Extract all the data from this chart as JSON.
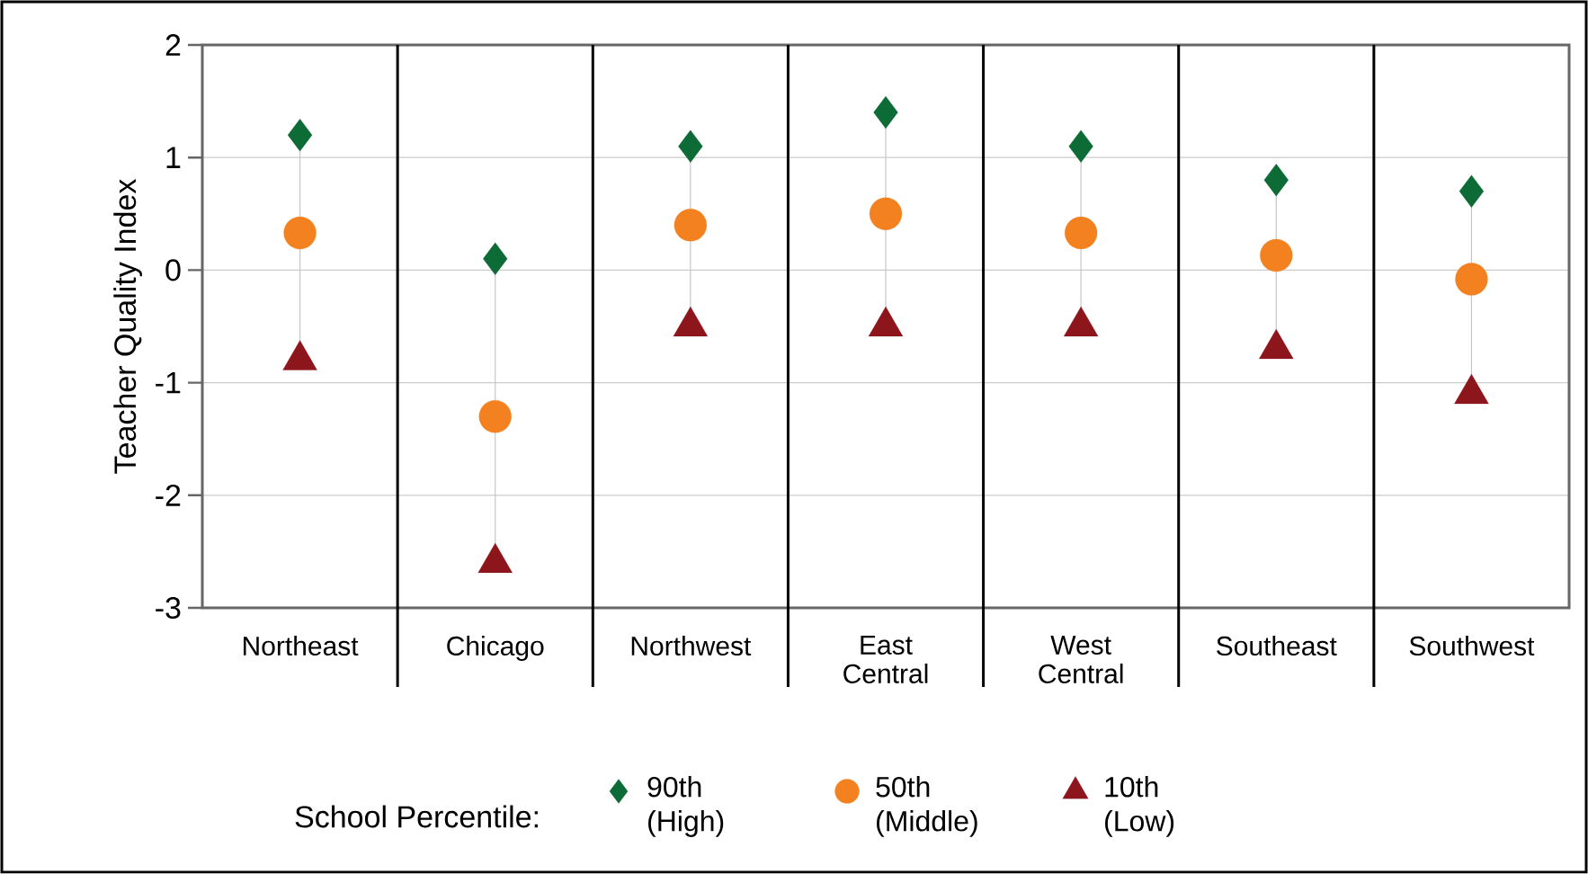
{
  "chart_data": {
    "type": "scatter",
    "ylabel": "Teacher Quality Index",
    "legend_title": "School Percentile:",
    "categories": [
      "Northeast",
      "Chicago",
      "Northwest",
      "East Central",
      "West Central",
      "Southeast",
      "Southwest"
    ],
    "series": [
      {
        "name": "90th (High)",
        "color": "#0d6b35",
        "marker": "diamond",
        "values": [
          1.2,
          0.1,
          1.1,
          1.4,
          1.1,
          0.8,
          0.7
        ]
      },
      {
        "name": "50th (Middle)",
        "color": "#f38120",
        "marker": "circle",
        "values": [
          0.33,
          -1.3,
          0.4,
          0.5,
          0.33,
          0.13,
          -0.08
        ]
      },
      {
        "name": "10th (Low)",
        "color": "#8c161c",
        "marker": "triangle",
        "values": [
          -0.8,
          -2.6,
          -0.5,
          -0.5,
          -0.5,
          -0.7,
          -1.1
        ]
      }
    ],
    "ylim": [
      -3,
      2
    ],
    "yticks": [
      -3,
      -2,
      -1,
      0,
      1,
      2
    ],
    "grid": "y",
    "legend": "bottom"
  }
}
